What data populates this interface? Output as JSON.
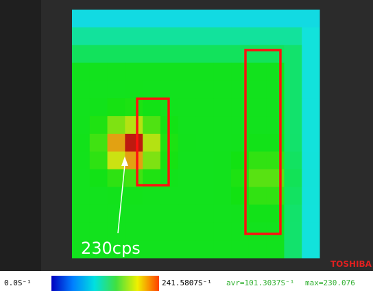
{
  "annotation": "230cps",
  "brand": "TOSHIBA",
  "scale": {
    "min_label": "0.0S⁻¹",
    "max_label": "241.5807S⁻¹",
    "avr_label": "avr=101.3037S⁻¹",
    "max_value_label": "max=230.076"
  }
}
